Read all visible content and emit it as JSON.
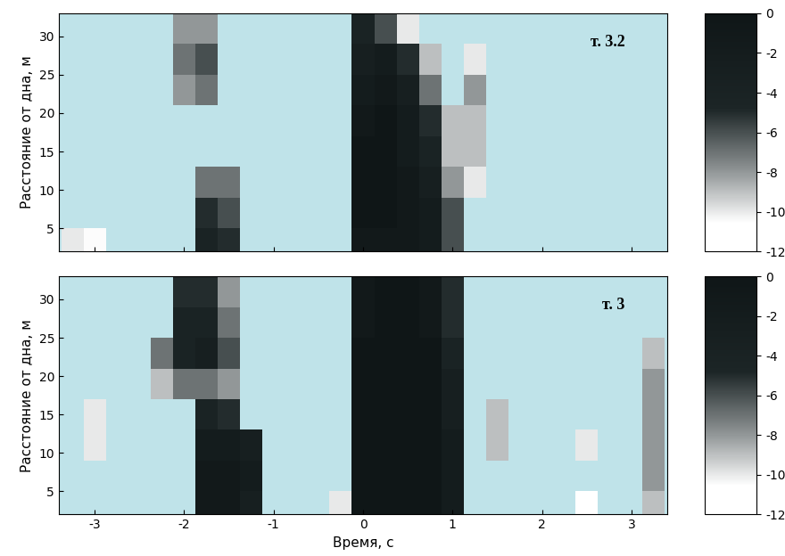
{
  "chart_data": [
    {
      "type": "heatmap",
      "annotation": "т. 3.2",
      "ylabel": "Расстояние от дна, м",
      "tick_labels": "y",
      "x": [
        -3.25,
        -3.0,
        -2.75,
        -2.5,
        -2.25,
        -2.0,
        -1.75,
        -1.5,
        -1.25,
        -1.0,
        -0.75,
        -0.5,
        -0.25,
        0,
        0.25,
        0.5,
        0.75,
        1.0,
        1.25,
        1.5,
        1.75,
        2.0,
        2.25,
        2.5,
        2.75,
        3.0,
        3.25
      ],
      "y": [
        3,
        7,
        11,
        15,
        19,
        23,
        27,
        31
      ],
      "cells": [
        [
          -10,
          -10.5,
          null,
          null,
          null,
          null,
          -4,
          -5,
          null,
          null,
          null,
          null,
          null,
          -1,
          -1,
          -1,
          -2,
          -6,
          null,
          null,
          null,
          null,
          null,
          null,
          null,
          null,
          null
        ],
        [
          null,
          null,
          null,
          null,
          null,
          null,
          -5,
          -6,
          null,
          null,
          null,
          null,
          null,
          0,
          0,
          -1,
          -2,
          -6,
          null,
          null,
          null,
          null,
          null,
          null,
          null,
          null,
          null
        ],
        [
          null,
          null,
          null,
          null,
          null,
          null,
          -7,
          -7,
          null,
          null,
          null,
          null,
          null,
          0,
          0,
          -1,
          -3,
          -8,
          -10,
          null,
          null,
          null,
          null,
          null,
          null,
          null,
          null
        ],
        [
          null,
          null,
          null,
          null,
          null,
          null,
          null,
          null,
          null,
          null,
          null,
          null,
          null,
          0,
          0,
          -2,
          -4,
          -9,
          -9,
          null,
          null,
          null,
          null,
          null,
          null,
          null,
          null
        ],
        [
          null,
          null,
          null,
          null,
          null,
          null,
          null,
          null,
          null,
          null,
          null,
          null,
          null,
          -1,
          0,
          -2,
          -5,
          -9,
          -9,
          null,
          null,
          null,
          null,
          null,
          null,
          null,
          null
        ],
        [
          null,
          null,
          null,
          null,
          null,
          -8,
          -7,
          null,
          null,
          null,
          null,
          null,
          null,
          -2,
          -1,
          -3,
          -7,
          null,
          -8,
          null,
          null,
          null,
          null,
          null,
          null,
          null,
          null
        ],
        [
          null,
          null,
          null,
          null,
          null,
          -7,
          -6,
          null,
          null,
          null,
          null,
          null,
          null,
          -3,
          -2,
          -5,
          -9,
          null,
          -10,
          null,
          null,
          null,
          null,
          null,
          null,
          null,
          null
        ],
        [
          null,
          null,
          null,
          null,
          null,
          -8,
          -8,
          null,
          null,
          null,
          null,
          null,
          null,
          -4,
          -6,
          -10,
          null,
          null,
          null,
          null,
          null,
          null,
          null,
          null,
          null,
          null,
          null
        ]
      ],
      "xlim": [
        -3.4,
        3.4
      ],
      "ylim": [
        2,
        33
      ],
      "xticks": [
        -3,
        -2,
        -1,
        0,
        1,
        2,
        3
      ],
      "yticks": [
        5,
        10,
        15,
        20,
        25,
        30
      ],
      "colorbar_range": [
        -12,
        0
      ],
      "colorbar_ticks": [
        0,
        -2,
        -4,
        -6,
        -8,
        -10,
        -12
      ]
    },
    {
      "type": "heatmap",
      "annotation": "т. 3",
      "ylabel": "Расстояние от дна, м",
      "xlabel": "Время, с",
      "x": [
        -3.25,
        -3.0,
        -2.75,
        -2.5,
        -2.25,
        -2.0,
        -1.75,
        -1.5,
        -1.25,
        -1.0,
        -0.75,
        -0.5,
        -0.25,
        0,
        0.25,
        0.5,
        0.75,
        1.0,
        1.25,
        1.5,
        1.75,
        2.0,
        2.25,
        2.5,
        2.75,
        3.0,
        3.25
      ],
      "y": [
        3,
        7,
        11,
        15,
        19,
        23,
        27,
        31
      ],
      "cells": [
        [
          null,
          null,
          null,
          null,
          null,
          null,
          -1,
          -1,
          -3,
          null,
          null,
          null,
          -10,
          0,
          0,
          0,
          0,
          -2,
          null,
          null,
          null,
          null,
          null,
          -11,
          null,
          null,
          -9
        ],
        [
          null,
          null,
          null,
          null,
          null,
          null,
          -1,
          -1,
          -2,
          null,
          null,
          null,
          null,
          0,
          0,
          0,
          0,
          -2,
          null,
          null,
          null,
          null,
          null,
          null,
          null,
          null,
          -8
        ],
        [
          null,
          -10,
          null,
          null,
          null,
          null,
          -2,
          -2,
          -3,
          null,
          null,
          null,
          null,
          0,
          0,
          0,
          0,
          -2,
          null,
          -9,
          null,
          null,
          null,
          -10,
          null,
          null,
          -8
        ],
        [
          null,
          -10,
          null,
          null,
          null,
          null,
          -4,
          -5,
          null,
          null,
          null,
          null,
          null,
          0,
          0,
          0,
          0,
          -3,
          null,
          -9,
          null,
          null,
          null,
          null,
          null,
          null,
          -8
        ],
        [
          null,
          null,
          null,
          null,
          -9,
          -7,
          -7,
          -8,
          null,
          null,
          null,
          null,
          null,
          0,
          0,
          0,
          0,
          -3,
          null,
          null,
          null,
          null,
          null,
          null,
          null,
          null,
          -8
        ],
        [
          null,
          null,
          null,
          null,
          -7,
          -4,
          -3,
          -6,
          null,
          null,
          null,
          null,
          null,
          0,
          0,
          0,
          0,
          -4,
          null,
          null,
          null,
          null,
          null,
          null,
          null,
          null,
          -9
        ],
        [
          null,
          null,
          null,
          null,
          null,
          -4,
          -4,
          -7,
          null,
          null,
          null,
          null,
          null,
          -1,
          0,
          0,
          -1,
          -5,
          null,
          null,
          null,
          null,
          null,
          null,
          null,
          null,
          null
        ],
        [
          null,
          null,
          null,
          null,
          null,
          -5,
          -5,
          -8,
          null,
          null,
          null,
          null,
          null,
          -1,
          0,
          0,
          -1,
          -5,
          null,
          null,
          null,
          null,
          null,
          null,
          null,
          null,
          null
        ]
      ],
      "xlim": [
        -3.4,
        3.4
      ],
      "ylim": [
        2,
        33
      ],
      "xticks": [
        -3,
        -2,
        -1,
        0,
        1,
        2,
        3
      ],
      "yticks": [
        5,
        10,
        15,
        20,
        25,
        30
      ],
      "colorbar_range": [
        -12,
        0
      ],
      "colorbar_ticks": [
        0,
        -2,
        -4,
        -6,
        -8,
        -10,
        -12
      ]
    }
  ]
}
